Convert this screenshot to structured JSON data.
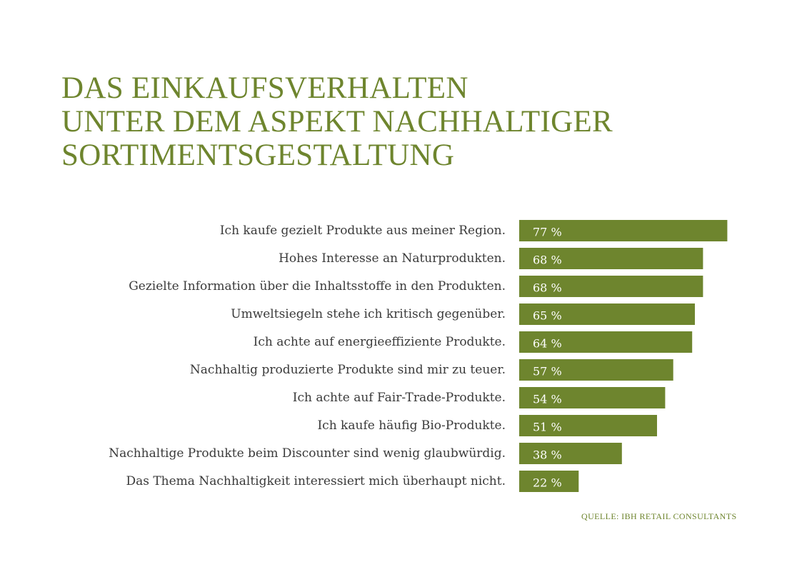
{
  "title_lines": [
    "DAS EINKAUFSVERHALTEN",
    "UNTER DEM ASPEKT NACHHALTIGER",
    "SORTIMENTSGESTALTUNG"
  ],
  "source": "QUELLE: IBH RETAIL CONSULTANTS",
  "colors": {
    "accent": "#6e852e",
    "bar": "#6e852e",
    "label_text": "#3a3a3a",
    "value_text": "#ffffff"
  },
  "chart_data": {
    "type": "bar",
    "orientation": "horizontal",
    "title": "DAS EINKAUFSVERHALTEN UNTER DEM ASPEKT NACHHALTIGER SORTIMENTSGESTALTUNG",
    "categories": [
      "Ich kaufe gezielt Produkte aus meiner Region.",
      "Hohes Interesse an Naturprodukten.",
      "Gezielte Information über die Inhaltsstoffe in den Produkten.",
      "Umweltsiegeln stehe ich kritisch gegenüber.",
      "Ich achte auf energieeffiziente Produkte.",
      "Nachhaltig produzierte Produkte sind mir zu teuer.",
      "Ich achte auf Fair-Trade-Produkte.",
      "Ich kaufe häufig Bio-Produkte.",
      "Nachhaltige Produkte beim Discounter sind wenig glaubwürdig.",
      "Das Thema Nachhaltigkeit interessiert mich überhaupt nicht."
    ],
    "values": [
      77,
      68,
      68,
      65,
      64,
      57,
      54,
      51,
      38,
      22
    ],
    "value_labels": [
      "77 %",
      "68 %",
      "68 %",
      "65 %",
      "64 %",
      "57 %",
      "54 %",
      "51 %",
      "38 %",
      "22 %"
    ],
    "unit": "%",
    "xlim": [
      0,
      100
    ],
    "grid": false,
    "legend": "none"
  }
}
